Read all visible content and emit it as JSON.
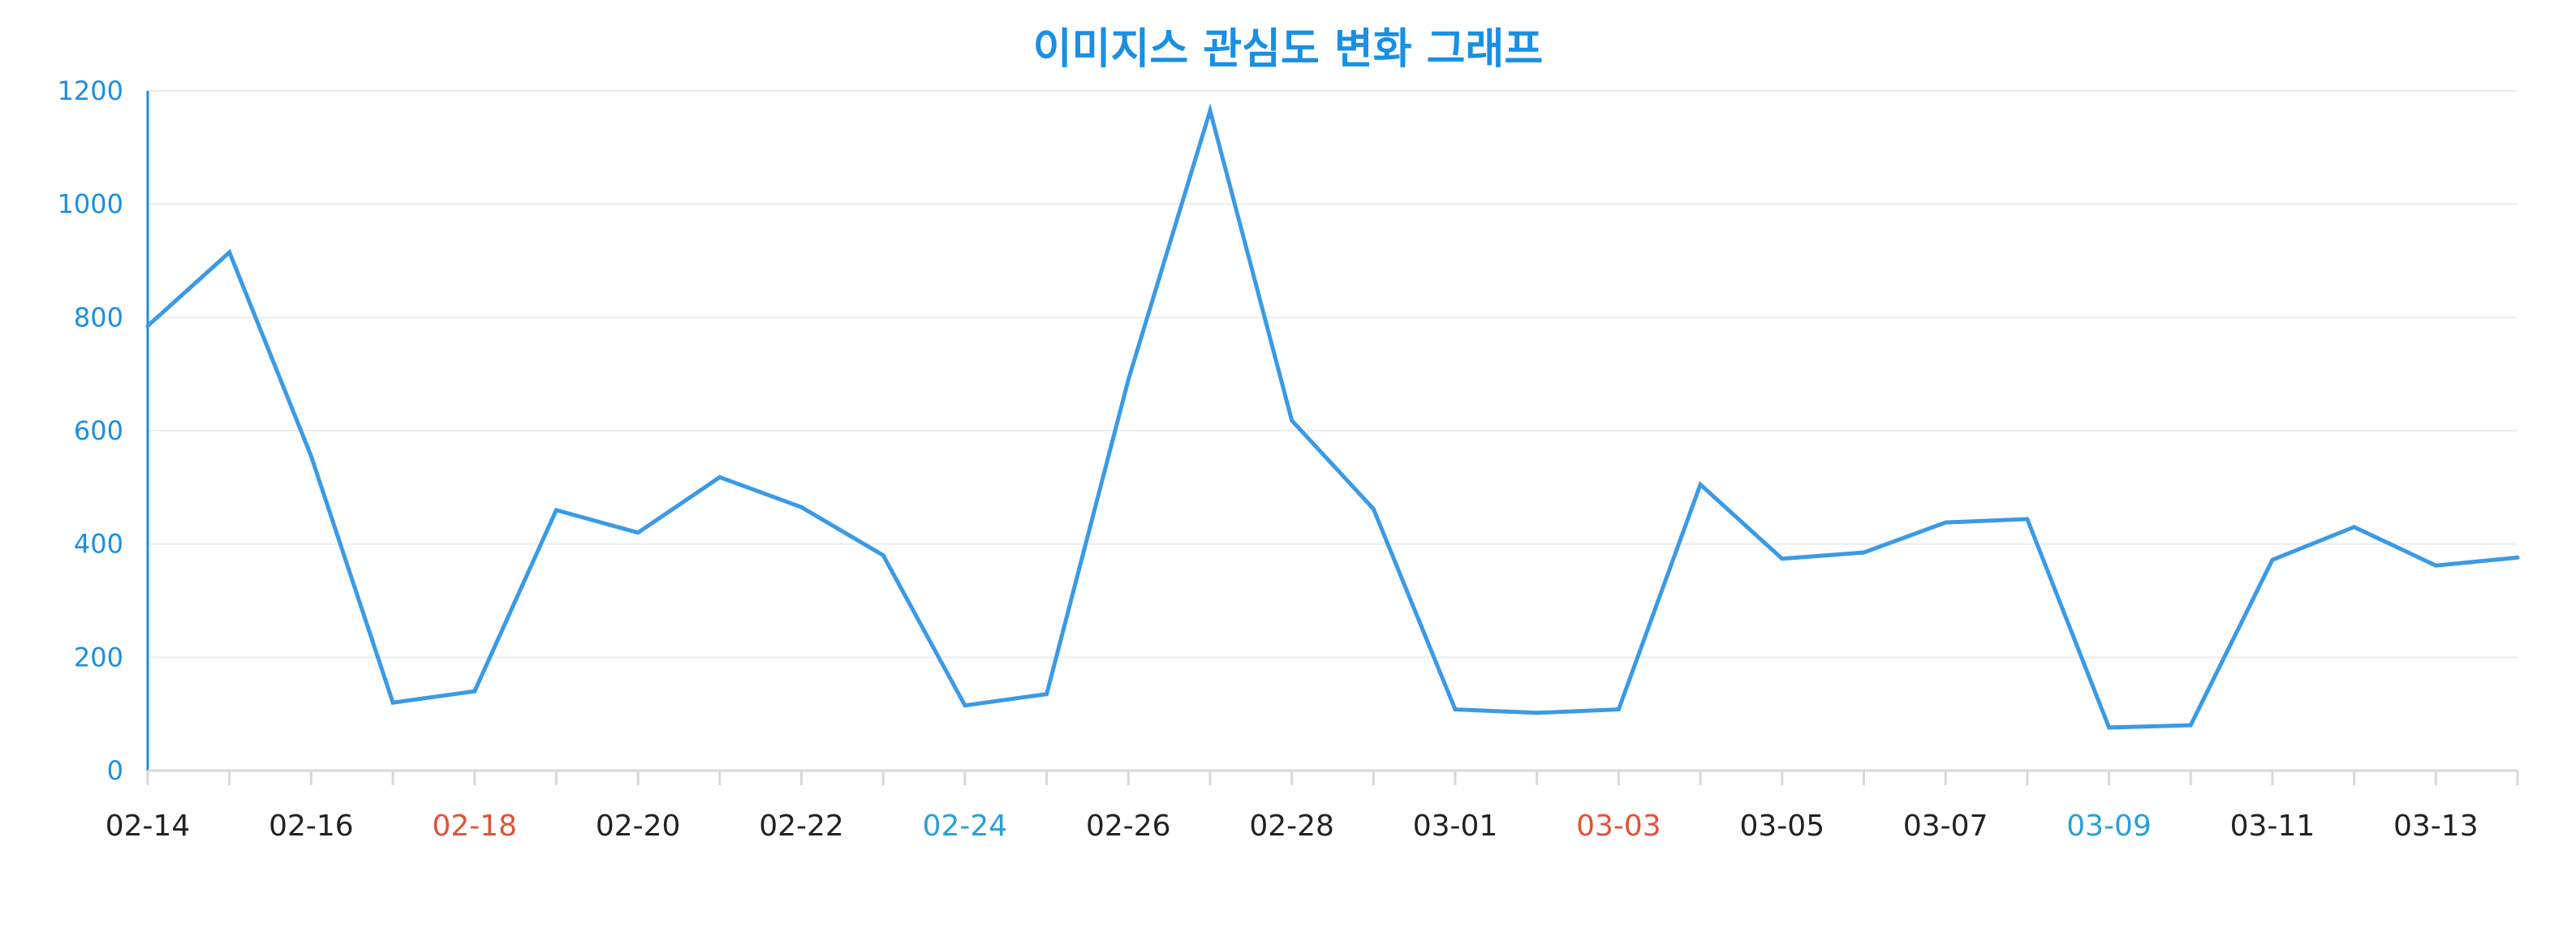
{
  "chart_data": {
    "type": "line",
    "title": "이미지스 관심도 변화 그래프",
    "xlabel": "",
    "ylabel": "",
    "ylim": [
      0,
      1200
    ],
    "y_ticks": [
      0,
      200,
      400,
      600,
      800,
      1000,
      1200
    ],
    "x_tick_labels": [
      "02-14",
      "02-16",
      "02-18",
      "02-20",
      "02-22",
      "02-24",
      "02-26",
      "02-28",
      "03-01",
      "03-03",
      "03-05",
      "03-07",
      "03-09",
      "03-11",
      "03-13"
    ],
    "grid": "horizontal",
    "legend": "none",
    "x": [
      "02-14",
      "02-15",
      "02-16",
      "02-17",
      "02-18",
      "02-19",
      "02-20",
      "02-21",
      "02-22",
      "02-23",
      "02-24",
      "02-25",
      "02-26",
      "02-27",
      "02-28",
      "02-29",
      "03-01",
      "03-02",
      "03-03",
      "03-04",
      "03-05",
      "03-06",
      "03-07",
      "03-08",
      "03-09",
      "03-10",
      "03-11",
      "03-12",
      "03-13",
      "03-14"
    ],
    "series": [
      {
        "values": [
          785,
          915,
          555,
          120,
          140,
          460,
          420,
          518,
          465,
          380,
          115,
          135,
          690,
          1165,
          618,
          462,
          108,
          102,
          108,
          505,
          374,
          385,
          438,
          444,
          76,
          80,
          372,
          430,
          362,
          376
        ]
      }
    ],
    "colors": {
      "line": "#3a9ae6",
      "title": "#1a8fe3",
      "axis": "#1a8fe3",
      "grid": "#ececec",
      "x_axis": "#d8d8d8",
      "tick_text_default": "#222222",
      "tick_text_red": "#e0533a",
      "tick_text_blue": "#2a9fd6"
    },
    "x_tick_label_colors": {
      "02-18": "red",
      "03-03": "red",
      "02-24": "blue",
      "03-09": "blue"
    }
  }
}
